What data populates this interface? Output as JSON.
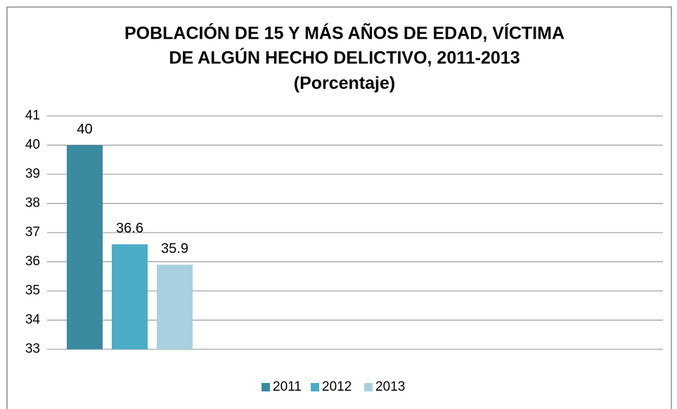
{
  "chart_data": {
    "type": "bar",
    "title": [
      "POBLACIÓN DE 15 Y MÁS AÑOS DE EDAD, VÍCTIMA",
      "DE ALGÚN HECHO DELICTIVO, 2011-2013"
    ],
    "subtitle": "(Porcentaje)",
    "categories": [
      null
    ],
    "series": [
      {
        "name": "2011",
        "color": "#3a8aa0",
        "values": [
          40
        ]
      },
      {
        "name": "2012",
        "color": "#4bacc6",
        "values": [
          36.6
        ]
      },
      {
        "name": "2013",
        "color": "#a9d0de",
        "values": [
          35.9
        ]
      }
    ],
    "ylim": [
      33,
      41
    ],
    "yticks": [
      33,
      34,
      35,
      36,
      37,
      38,
      39,
      40,
      41
    ],
    "grid": true,
    "legend": "bottom"
  }
}
